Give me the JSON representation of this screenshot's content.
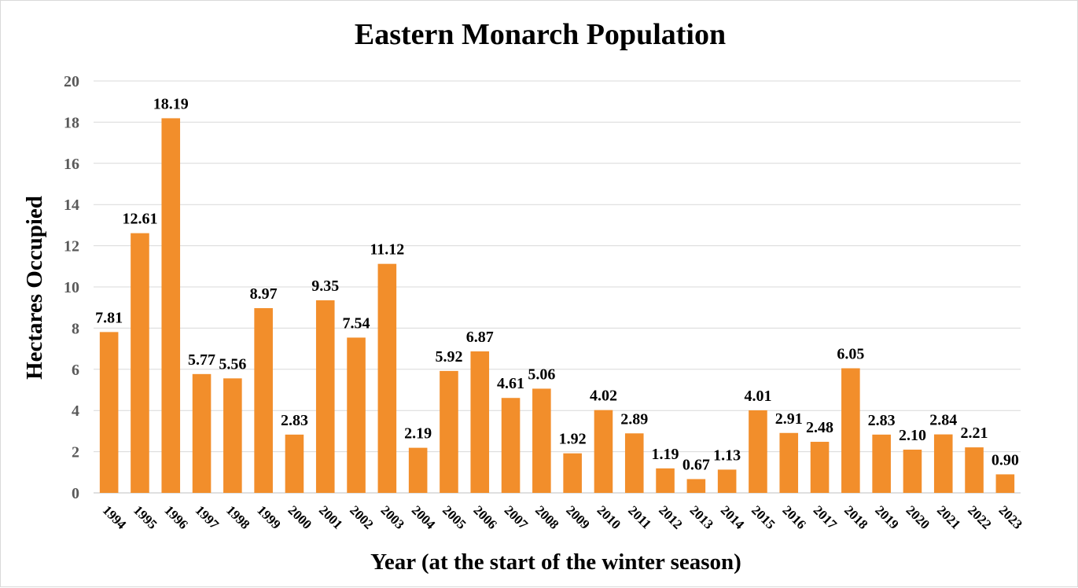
{
  "chart_data": {
    "type": "bar",
    "title": "Eastern Monarch Population",
    "xlabel": "Year (at the start of the winter season)",
    "ylabel": "Hectares Occupied",
    "ylim": [
      0,
      20
    ],
    "yticks": [
      0,
      2,
      4,
      6,
      8,
      10,
      12,
      14,
      16,
      18,
      20
    ],
    "grid": true,
    "legend": "none",
    "bar_color": "#f28e2b",
    "categories": [
      "1994",
      "1995",
      "1996",
      "1997",
      "1998",
      "1999",
      "2000",
      "2001",
      "2002",
      "2003",
      "2004",
      "2005",
      "2006",
      "2007",
      "2008",
      "2009",
      "2010",
      "2011",
      "2012",
      "2013",
      "2014",
      "2015",
      "2016",
      "2017",
      "2018",
      "2019",
      "2020",
      "2021",
      "2022",
      "2023"
    ],
    "values": [
      7.81,
      12.61,
      18.19,
      5.77,
      5.56,
      8.97,
      2.83,
      9.35,
      7.54,
      11.12,
      2.19,
      5.92,
      6.87,
      4.61,
      5.06,
      1.92,
      4.02,
      2.89,
      1.19,
      0.67,
      1.13,
      4.01,
      2.91,
      2.48,
      6.05,
      2.83,
      2.1,
      2.84,
      2.21,
      0.9
    ],
    "data_labels": [
      "7.81",
      "12.61",
      "18.19",
      "5.77",
      "5.56",
      "8.97",
      "2.83",
      "9.35",
      "7.54",
      "11.12",
      "2.19",
      "5.92",
      "6.87",
      "4.61",
      "5.06",
      "1.92",
      "4.02",
      "2.89",
      "1.19",
      "0.67",
      "1.13",
      "4.01",
      "2.91",
      "2.48",
      "6.05",
      "2.83",
      "2.10",
      "2.84",
      "2.21",
      "0.90"
    ]
  }
}
